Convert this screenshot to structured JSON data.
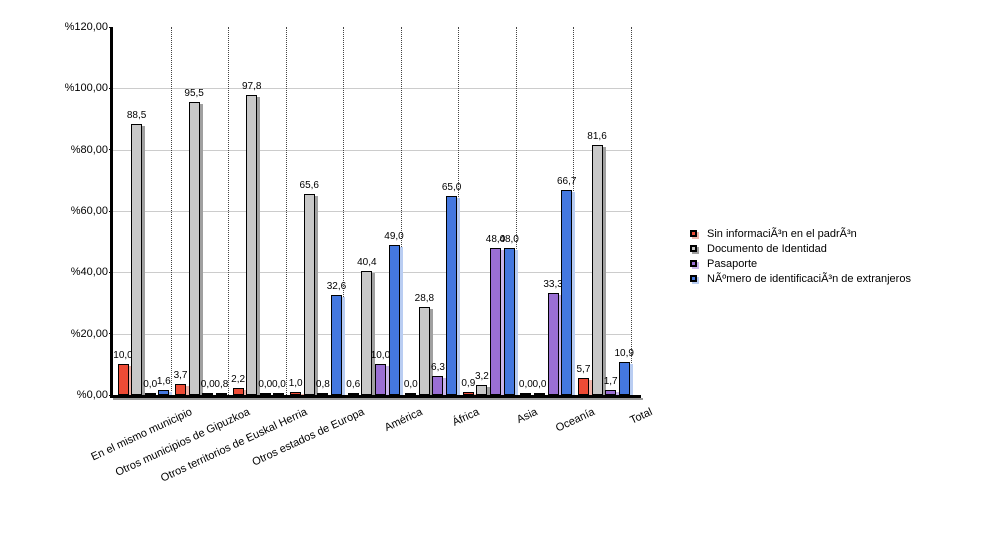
{
  "chart_data": {
    "type": "bar",
    "title": "",
    "xlabel": "",
    "ylabel": "",
    "ylim": [
      0,
      120
    ],
    "y_step": 20,
    "grid": true,
    "legend_position": "right",
    "decimal_separator": ",",
    "y_ticks": [
      {
        "label": "%0,00",
        "value": 0
      },
      {
        "label": "%20,00",
        "value": 20
      },
      {
        "label": "%40,00",
        "value": 40
      },
      {
        "label": "%60,00",
        "value": 60
      },
      {
        "label": "%80,00",
        "value": 80
      },
      {
        "label": "%100,00",
        "value": 100
      },
      {
        "label": "%120,00",
        "value": 120
      }
    ],
    "categories": [
      "En el mismo municipio",
      "Otros municipios de Gipuzkoa",
      "Otros territorios de Euskal Herria",
      "Otros estados de Europa",
      "América",
      "África",
      "Asia",
      "Oceanía",
      "Total"
    ],
    "series": [
      {
        "name": "Sin informaciÃ³n en el padrÃ³n",
        "color": "#ee4b35",
        "shadow_color": "#f0b5ab",
        "values": [
          10.0,
          3.7,
          2.2,
          1.0,
          0.6,
          0.0,
          0.9,
          0.0,
          5.7
        ]
      },
      {
        "name": "Documento de Identidad",
        "color": "#c8c8c8",
        "shadow_color": "#a0a0a0",
        "values": [
          88.5,
          95.5,
          97.8,
          65.6,
          40.4,
          28.8,
          3.2,
          0.0,
          81.6
        ]
      },
      {
        "name": "Pasaporte",
        "color": "#9a6fd4",
        "shadow_color": "#cab6ec",
        "values": [
          0.0,
          0.0,
          0.0,
          0.8,
          10.0,
          6.3,
          48.0,
          33.3,
          1.7
        ]
      },
      {
        "name": "NÃºmero de identificaciÃ³n de extranjeros",
        "color": "#4478e0",
        "shadow_color": "#b9cdf2",
        "values": [
          1.6,
          0.8,
          0.0,
          32.6,
          49.0,
          65.0,
          48.0,
          66.7,
          10.9
        ]
      }
    ]
  }
}
